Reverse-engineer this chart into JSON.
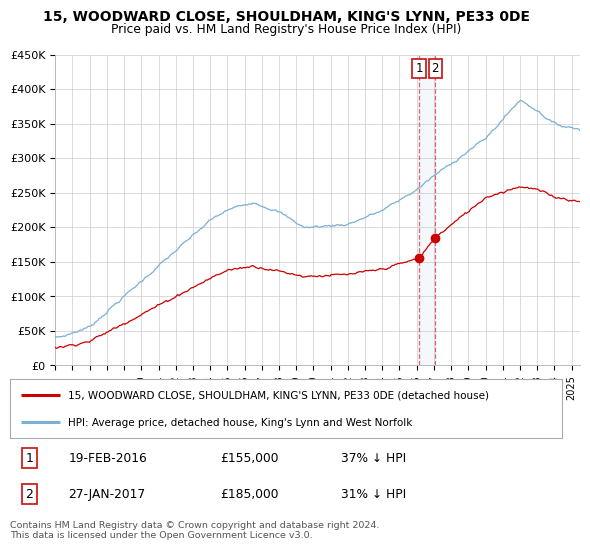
{
  "title": "15, WOODWARD CLOSE, SHOULDHAM, KING'S LYNN, PE33 0DE",
  "subtitle": "Price paid vs. HM Land Registry's House Price Index (HPI)",
  "ylabel_ticks": [
    "£0",
    "£50K",
    "£100K",
    "£150K",
    "£200K",
    "£250K",
    "£300K",
    "£350K",
    "£400K",
    "£450K"
  ],
  "ylabel_values": [
    0,
    50000,
    100000,
    150000,
    200000,
    250000,
    300000,
    350000,
    400000,
    450000
  ],
  "ylim": [
    0,
    450000
  ],
  "xlim_start": 1995.0,
  "xlim_end": 2025.5,
  "xtick_years": [
    1995,
    1996,
    1997,
    1998,
    1999,
    2000,
    2001,
    2002,
    2003,
    2004,
    2005,
    2006,
    2007,
    2008,
    2009,
    2010,
    2011,
    2012,
    2013,
    2014,
    2015,
    2016,
    2017,
    2018,
    2019,
    2020,
    2021,
    2022,
    2023,
    2024,
    2025
  ],
  "hpi_color": "#7ab0d4",
  "property_color": "#cc0000",
  "sale1_date": "19-FEB-2016",
  "sale1_price": 155000,
  "sale1_pct": "37%",
  "sale1_year": 2016.13,
  "sale2_date": "27-JAN-2017",
  "sale2_price": 185000,
  "sale2_pct": "31%",
  "sale2_year": 2017.08,
  "legend_label1": "15, WOODWARD CLOSE, SHOULDHAM, KING'S LYNN, PE33 0DE (detached house)",
  "legend_label2": "HPI: Average price, detached house, King's Lynn and West Norfolk",
  "footer": "Contains HM Land Registry data © Crown copyright and database right 2024.\nThis data is licensed under the Open Government Licence v3.0.",
  "background_color": "#ffffff",
  "grid_color": "#cccccc"
}
